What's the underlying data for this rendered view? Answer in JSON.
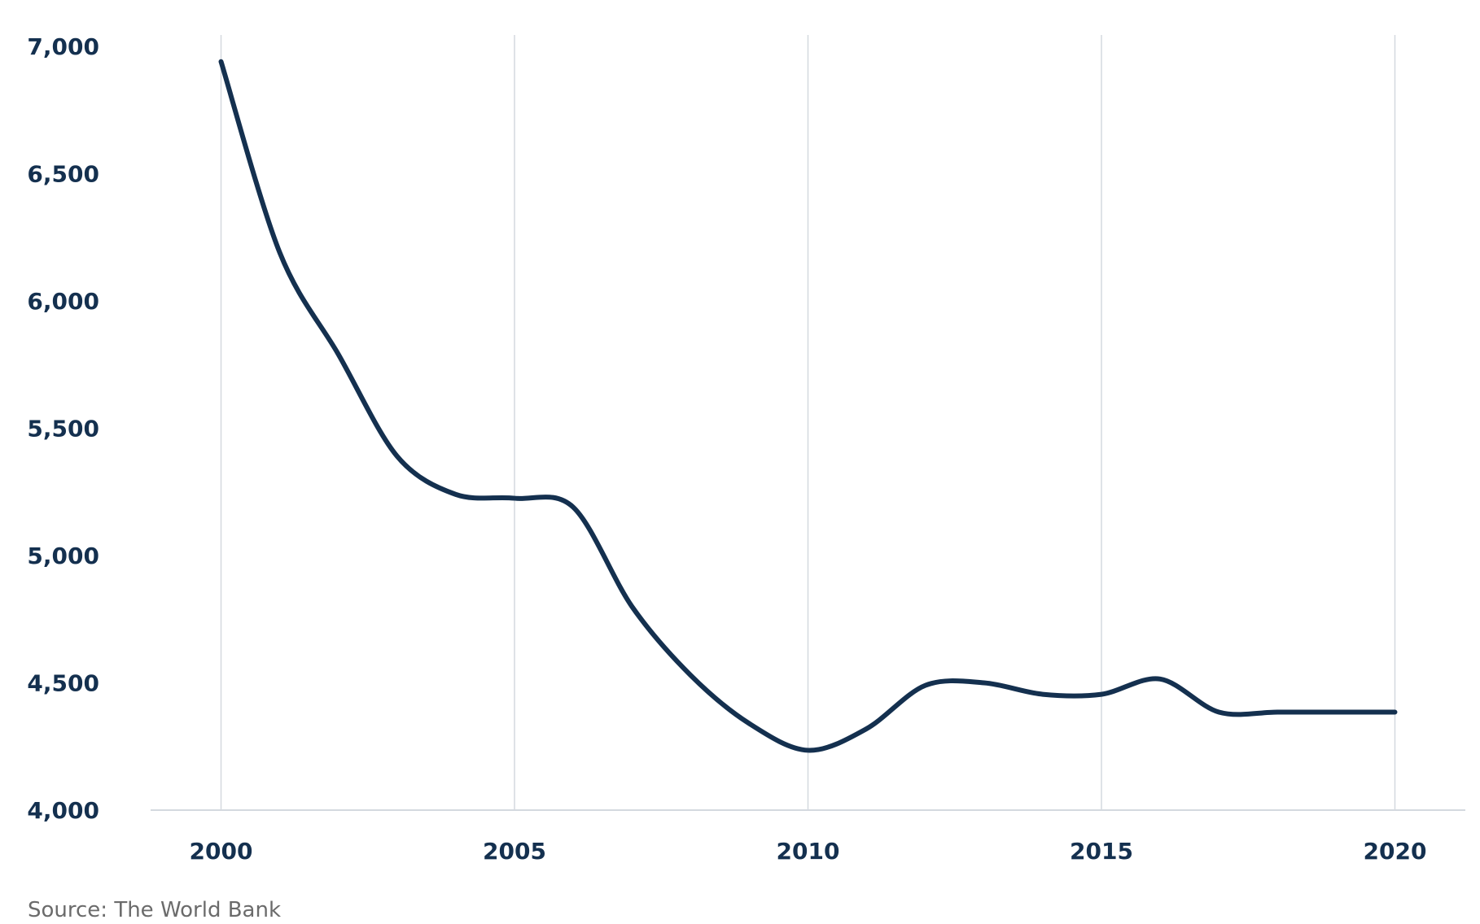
{
  "source": "Source: The World Bank",
  "colors": {
    "line": "#14304f",
    "grid": "#d4d9df",
    "axis": "#d4d9df",
    "tick_text": "#14304f",
    "source_text": "#6b6b6b"
  },
  "chart_data": {
    "type": "line",
    "title": "",
    "xlabel": "",
    "ylabel": "",
    "xlim": [
      1998.8,
      2021.2
    ],
    "ylim": [
      4000,
      7000
    ],
    "x_ticks": [
      2000,
      2005,
      2010,
      2015,
      2020
    ],
    "x_tick_labels": [
      "2000",
      "2005",
      "2010",
      "2015",
      "2020"
    ],
    "y_ticks": [
      4000,
      4500,
      5000,
      5500,
      6000,
      6500,
      7000
    ],
    "y_tick_labels": [
      "4,000",
      "4,500",
      "5,000",
      "5,500",
      "6,000",
      "6,500",
      "7,000"
    ],
    "grid": "vertical",
    "legend": "none",
    "series": [
      {
        "x": [
          2000,
          2001,
          2002,
          2003,
          2004,
          2005,
          2006,
          2007,
          2008,
          2009,
          2010,
          2011,
          2012,
          2013,
          2014,
          2015,
          2016,
          2017,
          2018,
          2019,
          2020
        ],
        "values": [
          6940,
          6190,
          5790,
          5390,
          5240,
          5225,
          5190,
          4800,
          4530,
          4340,
          4235,
          4320,
          4490,
          4500,
          4455,
          4455,
          4515,
          4385,
          4385,
          4385,
          4385
        ]
      }
    ]
  }
}
